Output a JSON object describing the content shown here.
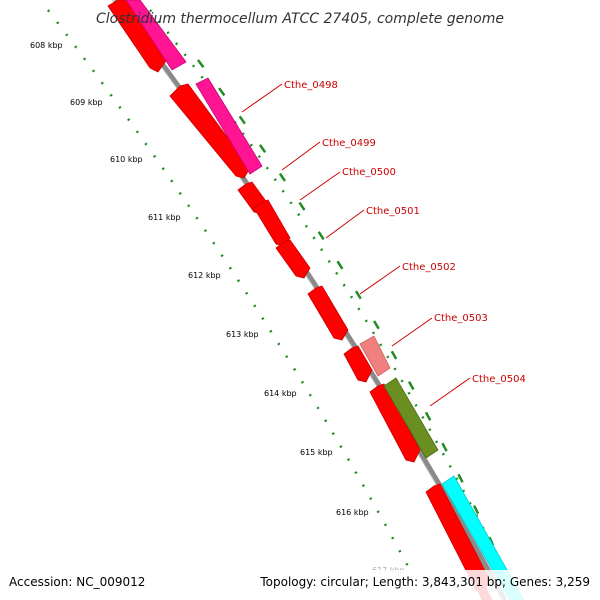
{
  "title": "Clostridium thermocellum ATCC 27405, complete genome",
  "footer": {
    "accession": "Accession: NC_009012",
    "topology": "Topology: circular; Length: 3,843,301 bp; Genes: 3,259"
  },
  "ticks": [
    {
      "label": "608 kbp",
      "kbp": 608
    },
    {
      "label": "609 kbp",
      "kbp": 609
    },
    {
      "label": "610 kbp",
      "kbp": 610
    },
    {
      "label": "611 kbp",
      "kbp": 611
    },
    {
      "label": "612 kbp",
      "kbp": 612
    },
    {
      "label": "613 kbp",
      "kbp": 613
    },
    {
      "label": "614 kbp",
      "kbp": 614
    },
    {
      "label": "615 kbp",
      "kbp": 615
    },
    {
      "label": "616 kbp",
      "kbp": 616
    },
    {
      "label": "617 kbp",
      "kbp": 617
    }
  ],
  "genes": [
    {
      "name": "Cthe_0498",
      "strand": "reverse",
      "color": "#ff0000"
    },
    {
      "name": "Cthe_0499",
      "strand": "reverse",
      "color": "#ff0000"
    },
    {
      "name": "Cthe_0500",
      "strand": "reverse",
      "color": "#ff0000"
    },
    {
      "name": "Cthe_0501",
      "strand": "reverse",
      "color": "#ff0000"
    },
    {
      "name": "Cthe_0502",
      "strand": "reverse",
      "color": "#ff0000"
    },
    {
      "name": "Cthe_0503",
      "strand": "reverse",
      "color": "#ff0000"
    },
    {
      "name": "Cthe_0504",
      "strand": "reverse",
      "color": "#ff0000"
    }
  ],
  "colors": {
    "cds": "#ff0000",
    "cds_shade": "#cc0000",
    "magenta_feature": "#ff1493",
    "pink_feature": "#f08080",
    "olive_feature": "#6b8e23",
    "cyan_feature": "#00ffff",
    "backbone": "#888888",
    "gc_dots": "#228b22",
    "label_red": "#cc0000"
  }
}
